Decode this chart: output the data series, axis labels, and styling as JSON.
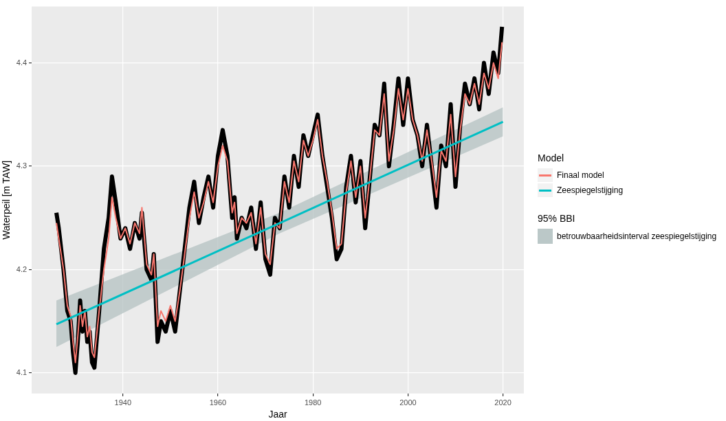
{
  "chart_data": {
    "type": "line",
    "xlabel": "Jaar",
    "ylabel": "Waterpeil [m TAW]",
    "legend_title": "Model",
    "legend": "right",
    "grid": true,
    "xlim": [
      1920.8,
      2024.4
    ],
    "ylim": [
      4.08,
      4.4545
    ],
    "xticks": [
      1940,
      1960,
      1980,
      2000,
      2020
    ],
    "yticks": [
      4.1,
      4.2,
      4.3,
      4.4
    ],
    "annotations": [
      "95% BBI",
      "betrouwbaarheidsinterval zeespiegelstijging"
    ],
    "series": [
      {
        "color": "#000000",
        "x": [
          1926,
          1926.5,
          1927.5,
          1928.3,
          1929,
          1929.5,
          1930,
          1930.5,
          1931,
          1931.5,
          1932,
          1932.5,
          1933,
          1933.5,
          1934,
          1935,
          1936,
          1937,
          1937.7,
          1938.5,
          1939.5,
          1940.5,
          1941.5,
          1942.5,
          1943.5,
          1944,
          1945,
          1946,
          1946.5,
          1947.3,
          1948,
          1949,
          1950,
          1951,
          1952,
          1953,
          1954,
          1955,
          1956,
          1957,
          1958,
          1959,
          1960,
          1961,
          1962,
          1963,
          1963.5,
          1964,
          1965,
          1966,
          1967,
          1968,
          1969,
          1970,
          1971,
          1972,
          1973,
          1974,
          1975,
          1976,
          1977,
          1978,
          1979,
          1980,
          1981,
          1982,
          1983,
          1984,
          1985,
          1986,
          1987,
          1988,
          1989,
          1990,
          1991,
          1992,
          1993,
          1994,
          1995,
          1996,
          1997,
          1998,
          1999,
          2000,
          2001,
          2002,
          2003,
          2004,
          2005,
          2006,
          2007,
          2008,
          2009,
          2010,
          2011,
          2012,
          2013,
          2014,
          2015,
          2016,
          2017,
          2018,
          2019,
          2019.8
        ],
        "values": [
          4.255,
          4.24,
          4.2,
          4.16,
          4.15,
          4.12,
          4.1,
          4.13,
          4.17,
          4.14,
          4.16,
          4.13,
          4.14,
          4.11,
          4.105,
          4.16,
          4.22,
          4.25,
          4.29,
          4.265,
          4.23,
          4.24,
          4.22,
          4.245,
          4.23,
          4.255,
          4.2,
          4.19,
          4.215,
          4.13,
          4.15,
          4.14,
          4.16,
          4.14,
          4.18,
          4.22,
          4.26,
          4.285,
          4.245,
          4.27,
          4.29,
          4.26,
          4.31,
          4.335,
          4.31,
          4.25,
          4.27,
          4.23,
          4.25,
          4.24,
          4.26,
          4.22,
          4.265,
          4.21,
          4.195,
          4.25,
          4.24,
          4.29,
          4.26,
          4.31,
          4.28,
          4.33,
          4.31,
          4.33,
          4.35,
          4.31,
          4.28,
          4.25,
          4.21,
          4.22,
          4.28,
          4.31,
          4.265,
          4.305,
          4.24,
          4.29,
          4.34,
          4.33,
          4.38,
          4.3,
          4.34,
          4.385,
          4.34,
          4.385,
          4.345,
          4.33,
          4.3,
          4.34,
          4.3,
          4.26,
          4.32,
          4.3,
          4.36,
          4.28,
          4.34,
          4.38,
          4.36,
          4.385,
          4.355,
          4.4,
          4.37,
          4.41,
          4.39,
          4.435
        ]
      },
      {
        "name": "Finaal model",
        "color": "#f8766d",
        "x": [
          1926,
          1926.5,
          1927.5,
          1928.3,
          1929,
          1929.5,
          1930,
          1930.5,
          1931,
          1931.5,
          1932,
          1932.5,
          1933,
          1933.5,
          1934,
          1935,
          1936,
          1937,
          1937.7,
          1938.5,
          1939.5,
          1940.5,
          1941.5,
          1942.5,
          1943.5,
          1944,
          1945,
          1946,
          1946.5,
          1947.3,
          1948,
          1949,
          1950,
          1951,
          1952,
          1953,
          1954,
          1955,
          1956,
          1957,
          1958,
          1959,
          1960,
          1961,
          1962,
          1963,
          1963.5,
          1964,
          1965,
          1966,
          1967,
          1968,
          1969,
          1970,
          1971,
          1972,
          1973,
          1974,
          1975,
          1976,
          1977,
          1978,
          1979,
          1980,
          1981,
          1982,
          1983,
          1984,
          1985,
          1986,
          1987,
          1988,
          1989,
          1990,
          1991,
          1992,
          1993,
          1994,
          1995,
          1996,
          1997,
          1998,
          1999,
          2000,
          2001,
          2002,
          2003,
          2004,
          2005,
          2006,
          2007,
          2008,
          2009,
          2010,
          2011,
          2012,
          2013,
          2014,
          2015,
          2016,
          2017,
          2018,
          2019,
          2019.8
        ],
        "values": [
          4.245,
          4.23,
          4.2,
          4.165,
          4.155,
          4.13,
          4.11,
          4.135,
          4.165,
          4.145,
          4.16,
          4.135,
          4.145,
          4.12,
          4.115,
          4.16,
          4.2,
          4.23,
          4.27,
          4.25,
          4.23,
          4.24,
          4.225,
          4.245,
          4.235,
          4.26,
          4.205,
          4.195,
          4.215,
          4.145,
          4.16,
          4.15,
          4.165,
          4.15,
          4.18,
          4.215,
          4.25,
          4.275,
          4.25,
          4.265,
          4.285,
          4.265,
          4.3,
          4.32,
          4.305,
          4.255,
          4.265,
          4.235,
          4.25,
          4.245,
          4.255,
          4.225,
          4.26,
          4.215,
          4.205,
          4.245,
          4.24,
          4.285,
          4.265,
          4.305,
          4.285,
          4.325,
          4.31,
          4.325,
          4.345,
          4.31,
          4.285,
          4.255,
          4.22,
          4.225,
          4.275,
          4.305,
          4.27,
          4.3,
          4.25,
          4.29,
          4.335,
          4.33,
          4.37,
          4.305,
          4.335,
          4.375,
          4.345,
          4.375,
          4.345,
          4.33,
          4.305,
          4.335,
          4.305,
          4.27,
          4.315,
          4.305,
          4.35,
          4.29,
          4.335,
          4.37,
          4.36,
          4.38,
          4.36,
          4.39,
          4.375,
          4.4,
          4.385,
          4.42
        ]
      },
      {
        "name": "Zeespiegelstijging",
        "color": "#00bfc4",
        "x": [
          1926,
          1973,
          2020
        ],
        "values": [
          4.147,
          4.245,
          4.343
        ],
        "lower": [
          4.125,
          4.235,
          4.329
        ],
        "upper": [
          4.17,
          4.255,
          4.357
        ]
      }
    ]
  }
}
